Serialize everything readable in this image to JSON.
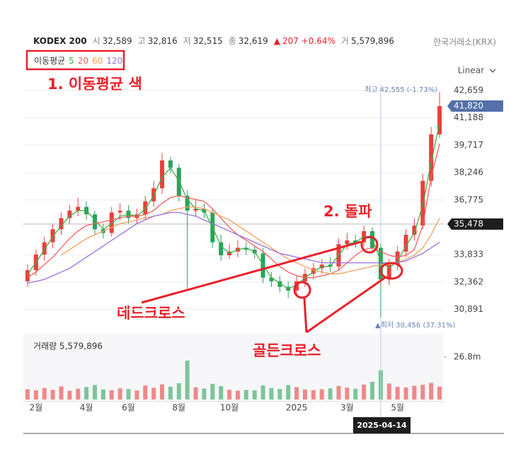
{
  "header": {
    "title": "KODEX 200",
    "quotes": [
      {
        "label": "시",
        "value": "32,589"
      },
      {
        "label": "고",
        "value": "32,816"
      },
      {
        "label": "저",
        "value": "32,515"
      },
      {
        "label": "종",
        "value": "32,619"
      },
      {
        "label": "▲",
        "value": "207 +0.64%",
        "color": "#e8212b"
      },
      {
        "label": "거",
        "value": "5,579,896"
      }
    ],
    "exchange": "한국거래소(KRX)",
    "scale": "Linear"
  },
  "chart_data": {
    "type": "candlestick",
    "legend_title": "이동평균",
    "categories": [
      null,
      "2월",
      null,
      null,
      null,
      null,
      null,
      "4월",
      null,
      null,
      null,
      null,
      "6월",
      null,
      null,
      null,
      null,
      null,
      "8월",
      null,
      null,
      null,
      null,
      null,
      "10월",
      null,
      null,
      null,
      null,
      null,
      null,
      null,
      "2025",
      null,
      null,
      null,
      null,
      null,
      "3월",
      null,
      null,
      null,
      null,
      null,
      "5월",
      null,
      null,
      null,
      null,
      null
    ],
    "open": [
      32400,
      33000,
      33840,
      34500,
      35200,
      35800,
      36200,
      36400,
      36000,
      35200,
      35000,
      36100,
      36200,
      35800,
      36000,
      36700,
      37400,
      38900,
      38500,
      37000,
      36200,
      36300,
      36100,
      34500,
      33800,
      34000,
      34200,
      34100,
      33900,
      32600,
      32400,
      32100,
      31900,
      32400,
      32800,
      33100,
      33300,
      33200,
      34400,
      34600,
      34500,
      35100,
      34200,
      32500,
      33300,
      34000,
      34900,
      35400,
      37800,
      40300
    ],
    "high": [
      33300,
      34100,
      34800,
      35500,
      36100,
      36500,
      36900,
      36700,
      36200,
      35500,
      36400,
      36600,
      36500,
      36300,
      37000,
      37800,
      39300,
      39100,
      38700,
      37300,
      36800,
      36600,
      36300,
      34900,
      34400,
      34600,
      34500,
      34300,
      34200,
      32900,
      32700,
      32400,
      32700,
      33100,
      33400,
      33600,
      33700,
      34700,
      35000,
      34900,
      35400,
      35300,
      34400,
      33600,
      34300,
      35200,
      35800,
      38200,
      40700,
      42555
    ],
    "low": [
      32100,
      32700,
      33500,
      34200,
      34900,
      35500,
      35900,
      35700,
      34900,
      34700,
      34800,
      35700,
      35500,
      35500,
      35700,
      36400,
      37100,
      38200,
      36700,
      32000,
      35900,
      35800,
      34200,
      33500,
      33600,
      33700,
      33800,
      33600,
      32300,
      32100,
      31800,
      31500,
      31600,
      32100,
      32500,
      32800,
      32900,
      33000,
      34100,
      34200,
      34300,
      33900,
      30456,
      32200,
      33000,
      33700,
      34600,
      35200,
      37500,
      40100
    ],
    "close": [
      33000,
      33840,
      34500,
      35200,
      35800,
      36200,
      36400,
      36000,
      35200,
      35000,
      36100,
      36200,
      35800,
      36000,
      36700,
      37400,
      38900,
      38500,
      37000,
      36200,
      36300,
      36100,
      34500,
      33800,
      34000,
      34200,
      34100,
      33900,
      32600,
      32400,
      32100,
      31900,
      32400,
      32800,
      33100,
      33300,
      33200,
      34400,
      34600,
      34500,
      35100,
      34200,
      32500,
      33300,
      34000,
      34900,
      35400,
      37800,
      40300,
      41820
    ],
    "up_color": "#e8403c",
    "down_color": "#2aa35a",
    "series": [
      {
        "name": "5",
        "color": "#3fae49",
        "values": [
          32800,
          33400,
          34100,
          34800,
          35400,
          35900,
          36200,
          36200,
          35700,
          35200,
          35500,
          35900,
          36000,
          35900,
          36300,
          37000,
          38000,
          38500,
          37800,
          36800,
          36300,
          36200,
          35300,
          34300,
          33900,
          34100,
          34200,
          34000,
          33300,
          32600,
          32300,
          32000,
          32200,
          32600,
          32900,
          33200,
          33200,
          33800,
          34400,
          34500,
          34800,
          34700,
          33500,
          33100,
          33500,
          34300,
          35000,
          36500,
          38800,
          40900
        ]
      },
      {
        "name": "20",
        "color": "#f0605a",
        "values": [
          32600,
          32900,
          33300,
          33700,
          34200,
          34700,
          35100,
          35400,
          35500,
          35600,
          35700,
          35800,
          35900,
          35900,
          36000,
          36200,
          36600,
          36900,
          37000,
          36900,
          36800,
          36700,
          36300,
          35800,
          35300,
          34900,
          34600,
          34300,
          34000,
          33600,
          33200,
          32900,
          32700,
          32600,
          32600,
          32700,
          32800,
          33000,
          33400,
          33800,
          34100,
          34200,
          34000,
          33800,
          33700,
          33800,
          34100,
          35400,
          38000,
          39800
        ]
      },
      {
        "name": "60",
        "color": "#f5a05a",
        "values": [
          null,
          null,
          null,
          null,
          33800,
          34100,
          34400,
          34700,
          34900,
          35100,
          35300,
          35500,
          35600,
          35700,
          35800,
          35900,
          36000,
          36200,
          36300,
          36400,
          36400,
          36300,
          36100,
          35900,
          35700,
          35400,
          35100,
          34800,
          34500,
          34200,
          33900,
          33600,
          33400,
          33200,
          33000,
          32900,
          32800,
          32800,
          32900,
          33000,
          33100,
          33200,
          33300,
          33300,
          33400,
          33600,
          33800,
          34200,
          34900,
          35800
        ]
      },
      {
        "name": "120",
        "color": "#9b6fe0",
        "values": [
          32300,
          32400,
          32500,
          32700,
          32900,
          33100,
          33400,
          33700,
          34000,
          34300,
          34600,
          34900,
          35200,
          35500,
          35700,
          35900,
          36000,
          36100,
          36100,
          36000,
          35900,
          35700,
          35500,
          35300,
          35100,
          34900,
          34700,
          34500,
          34300,
          34100,
          33900,
          33800,
          33700,
          33600,
          33500,
          33400,
          33400,
          33400,
          33400,
          33400,
          33400,
          33400,
          33400,
          33400,
          33400,
          33500,
          33700,
          33900,
          34200,
          34500
        ]
      }
    ],
    "ylim": [
      30000,
      43000
    ],
    "yticks": [
      {
        "value": 42659,
        "label": "42,659"
      },
      {
        "value": 41188,
        "label": "41,188"
      },
      {
        "value": 39717,
        "label": "39,717"
      },
      {
        "value": 38246,
        "label": "38,246"
      },
      {
        "value": 36775,
        "label": "36,775"
      },
      {
        "value": 33833,
        "label": "33,833"
      },
      {
        "value": 32362,
        "label": "32,362"
      },
      {
        "value": 30891,
        "label": "30,891"
      }
    ],
    "grid": true,
    "price_tags": [
      {
        "value": 41820,
        "label": "41,820",
        "color": "#5470a8"
      },
      {
        "value": 35478,
        "label": "35,478",
        "color": "#1e1e1e"
      }
    ],
    "max_label": "최고 42,555 (-1.73%)",
    "min_label": "▲최저 30,456 (37.31%)",
    "crosshair_label": "2025-04-14",
    "volume": {
      "label": "거래량 5,579,896",
      "values": [
        6500000,
        5800000,
        7200000,
        6100000,
        8300000,
        5500000,
        6800000,
        7900000,
        9200000,
        6400000,
        5900000,
        7100000,
        6600000,
        5700000,
        8800000,
        7400000,
        9600000,
        8100000,
        10300000,
        24600000,
        7700000,
        6900000,
        9900000,
        8400000,
        6200000,
        5600000,
        6000000,
        5800000,
        8900000,
        7300000,
        6700000,
        9100000,
        7800000,
        6300000,
        5900000,
        6500000,
        7000000,
        8600000,
        7500000,
        6800000,
        9400000,
        11200000,
        18500000,
        10100000,
        8000000,
        7600000,
        8700000,
        9300000,
        10500000,
        8200000
      ],
      "ylim": [
        0,
        40200000
      ],
      "yticks": [
        {
          "value": 26800000,
          "label": "26.8m"
        }
      ]
    }
  },
  "annotations": {
    "ma_color": "1. 이동평균 색",
    "breakout": "2. 돌파",
    "dead_cross": "데드크로스",
    "golden_cross": "골든크로스"
  }
}
